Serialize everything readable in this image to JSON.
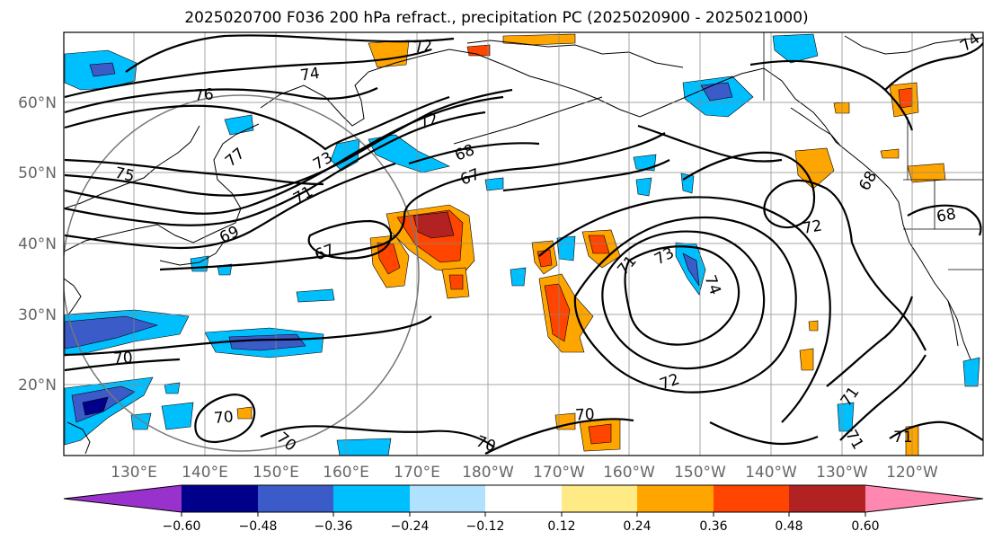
{
  "title": "2025020700 F036 200 hPa refract., precipitation PC (2025020900 - 2025021000)",
  "lat_labels": [
    "60°N",
    "50°N",
    "40°N",
    "30°N",
    "20°N"
  ],
  "lon_labels": [
    "130°E",
    "140°E",
    "150°E",
    "160°E",
    "170°E",
    "180°W",
    "170°W",
    "160°W",
    "150°W",
    "140°W",
    "130°W",
    "120°W"
  ],
  "colorbar": {
    "colors": [
      "#9932cc",
      "#00008b",
      "#3a5bc8",
      "#00bfff",
      "#b0e2ff",
      "#ffffff",
      "#ffeb85",
      "#ffa500",
      "#ff4500",
      "#b22222",
      "#ff88b0"
    ],
    "tick_labels": [
      "−0.60",
      "−0.48",
      "−0.36",
      "−0.24",
      "−0.12",
      "0.12",
      "0.24",
      "0.36",
      "0.48",
      "0.60"
    ]
  },
  "contour_labels": [
    {
      "text": "72"
    },
    {
      "text": "74"
    },
    {
      "text": "76"
    },
    {
      "text": "77"
    },
    {
      "text": "75"
    },
    {
      "text": "72"
    },
    {
      "text": "73"
    },
    {
      "text": "71"
    },
    {
      "text": "68"
    },
    {
      "text": "67"
    },
    {
      "text": "69"
    },
    {
      "text": "67"
    },
    {
      "text": "70"
    },
    {
      "text": "70"
    },
    {
      "text": "70"
    },
    {
      "text": "70"
    },
    {
      "text": "70"
    },
    {
      "text": "71"
    },
    {
      "text": "73"
    },
    {
      "text": "74"
    },
    {
      "text": "72"
    },
    {
      "text": "72"
    },
    {
      "text": "68"
    },
    {
      "text": "71"
    },
    {
      "text": "71"
    },
    {
      "text": "71"
    },
    {
      "text": "74"
    },
    {
      "text": "68"
    }
  ]
}
